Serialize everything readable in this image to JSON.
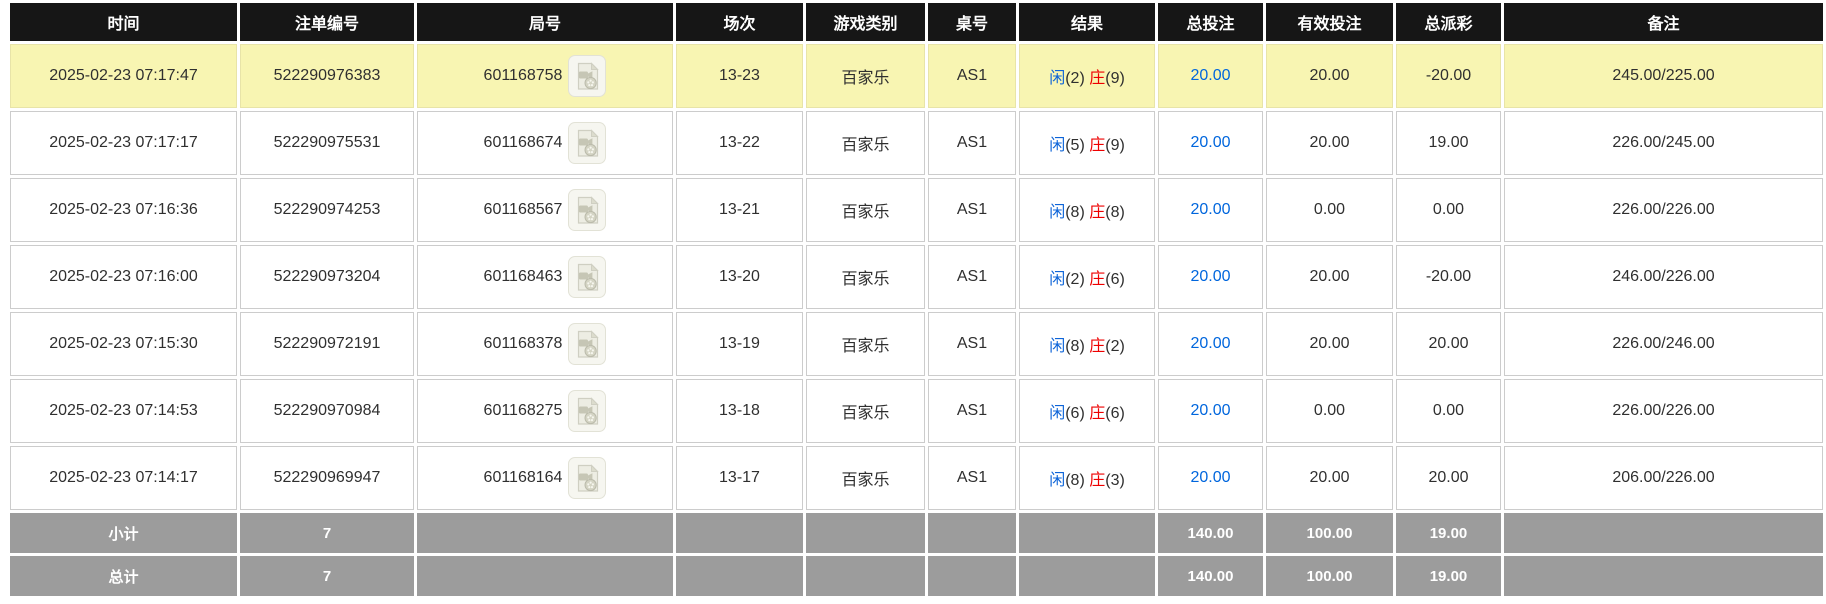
{
  "colors": {
    "header_bg": "#161616",
    "header_text": "#ffffff",
    "highlight_row_bg": "#f8f5b2",
    "row_bg": "#ffffff",
    "footer_bg": "#9c9c9c",
    "footer_text": "#ffffff",
    "bet_link_blue": "#0066dd",
    "player_blue": "#0d64d8",
    "banker_red": "#ee0000",
    "negative_red": "#ee0000",
    "body_text": "#2f2f2f",
    "cell_border": "#cccccc"
  },
  "table": {
    "columns": [
      {
        "key": "time",
        "label": "时间"
      },
      {
        "key": "bet_no",
        "label": "注单编号"
      },
      {
        "key": "round_no",
        "label": "局号"
      },
      {
        "key": "session",
        "label": "场次"
      },
      {
        "key": "game_type",
        "label": "游戏类别"
      },
      {
        "key": "table_no",
        "label": "桌号"
      },
      {
        "key": "result",
        "label": "结果"
      },
      {
        "key": "total_bet",
        "label": "总投注"
      },
      {
        "key": "valid_bet",
        "label": "有效投注"
      },
      {
        "key": "payout",
        "label": "总派彩"
      },
      {
        "key": "remark",
        "label": "备注"
      }
    ],
    "rows": [
      {
        "time": "2025-02-23 07:17:47",
        "bet_no": "522290976383",
        "round_no": "601168758",
        "video_icon": "video-replay-icon",
        "session": "13-23",
        "game_type": "百家乐",
        "table_no": "AS1",
        "result": {
          "player_label": "闲",
          "player_value": "(2)",
          "banker_label": "庄",
          "banker_value": "(9)"
        },
        "total_bet": "20.00",
        "valid_bet": "20.00",
        "payout": "-20.00",
        "payout_negative": true,
        "remark": "245.00/225.00",
        "highlighted": true
      },
      {
        "time": "2025-02-23 07:17:17",
        "bet_no": "522290975531",
        "round_no": "601168674",
        "video_icon": "video-replay-icon",
        "session": "13-22",
        "game_type": "百家乐",
        "table_no": "AS1",
        "result": {
          "player_label": "闲",
          "player_value": "(5)",
          "banker_label": "庄",
          "banker_value": "(9)"
        },
        "total_bet": "20.00",
        "valid_bet": "20.00",
        "payout": "19.00",
        "payout_negative": false,
        "remark": "226.00/245.00",
        "highlighted": false
      },
      {
        "time": "2025-02-23 07:16:36",
        "bet_no": "522290974253",
        "round_no": "601168567",
        "video_icon": "video-replay-icon",
        "session": "13-21",
        "game_type": "百家乐",
        "table_no": "AS1",
        "result": {
          "player_label": "闲",
          "player_value": "(8)",
          "banker_label": "庄",
          "banker_value": "(8)"
        },
        "total_bet": "20.00",
        "valid_bet": "0.00",
        "payout": "0.00",
        "payout_negative": false,
        "remark": "226.00/226.00",
        "highlighted": false
      },
      {
        "time": "2025-02-23 07:16:00",
        "bet_no": "522290973204",
        "round_no": "601168463",
        "video_icon": "video-replay-icon",
        "session": "13-20",
        "game_type": "百家乐",
        "table_no": "AS1",
        "result": {
          "player_label": "闲",
          "player_value": "(2)",
          "banker_label": "庄",
          "banker_value": "(6)"
        },
        "total_bet": "20.00",
        "valid_bet": "20.00",
        "payout": "-20.00",
        "payout_negative": true,
        "remark": "246.00/226.00",
        "highlighted": false
      },
      {
        "time": "2025-02-23 07:15:30",
        "bet_no": "522290972191",
        "round_no": "601168378",
        "video_icon": "video-replay-icon",
        "session": "13-19",
        "game_type": "百家乐",
        "table_no": "AS1",
        "result": {
          "player_label": "闲",
          "player_value": "(8)",
          "banker_label": "庄",
          "banker_value": "(2)"
        },
        "total_bet": "20.00",
        "valid_bet": "20.00",
        "payout": "20.00",
        "payout_negative": false,
        "remark": "226.00/246.00",
        "highlighted": false
      },
      {
        "time": "2025-02-23 07:14:53",
        "bet_no": "522290970984",
        "round_no": "601168275",
        "video_icon": "video-replay-icon",
        "session": "13-18",
        "game_type": "百家乐",
        "table_no": "AS1",
        "result": {
          "player_label": "闲",
          "player_value": "(6)",
          "banker_label": "庄",
          "banker_value": "(6)"
        },
        "total_bet": "20.00",
        "valid_bet": "0.00",
        "payout": "0.00",
        "payout_negative": false,
        "remark": "226.00/226.00",
        "highlighted": false
      },
      {
        "time": "2025-02-23 07:14:17",
        "bet_no": "522290969947",
        "round_no": "601168164",
        "video_icon": "video-replay-icon",
        "session": "13-17",
        "game_type": "百家乐",
        "table_no": "AS1",
        "result": {
          "player_label": "闲",
          "player_value": "(8)",
          "banker_label": "庄",
          "banker_value": "(3)"
        },
        "total_bet": "20.00",
        "valid_bet": "20.00",
        "payout": "20.00",
        "payout_negative": false,
        "remark": "206.00/226.00",
        "highlighted": false
      }
    ],
    "footer_rows": [
      {
        "label": "小计",
        "count": "7",
        "total_bet": "140.00",
        "valid_bet": "100.00",
        "payout": "19.00"
      },
      {
        "label": "总计",
        "count": "7",
        "total_bet": "140.00",
        "valid_bet": "100.00",
        "payout": "19.00"
      }
    ]
  }
}
